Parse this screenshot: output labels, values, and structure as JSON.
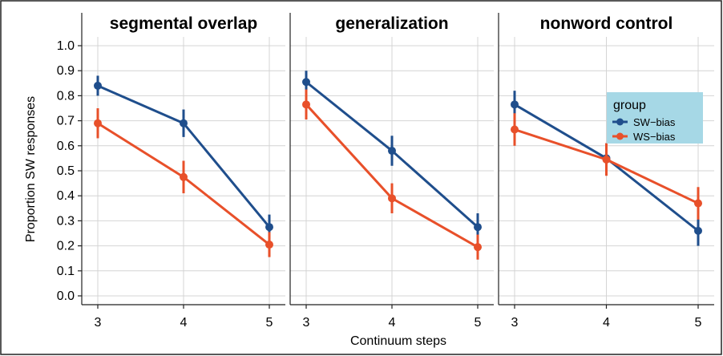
{
  "chart_data": {
    "type": "line",
    "ylabel": "Proportion SW responses",
    "xlabel": "Continuum steps",
    "ylim": [
      0.0,
      1.0
    ],
    "yticks": [
      "0.0",
      "0.1",
      "0.2",
      "0.3",
      "0.4",
      "0.5",
      "0.6",
      "0.7",
      "0.8",
      "0.9",
      "1.0"
    ],
    "x": [
      3,
      4,
      5
    ],
    "xticks": [
      "3",
      "4",
      "5"
    ],
    "grid": true,
    "legend": {
      "title": "group",
      "placement": "inside-top-right of last panel",
      "background": "#a6d8e6",
      "entries": [
        "SW−bias",
        "WS−bias"
      ]
    },
    "colors": {
      "SW-bias": "#1f4e8c",
      "WS-bias": "#e8502a"
    },
    "panels": [
      {
        "title": "segmental overlap",
        "series": [
          {
            "name": "SW−bias",
            "values": [
              0.84,
              0.69,
              0.275
            ],
            "err": [
              0.04,
              0.055,
              0.05
            ]
          },
          {
            "name": "WS−bias",
            "values": [
              0.69,
              0.475,
              0.205
            ],
            "err": [
              0.06,
              0.065,
              0.05
            ]
          }
        ]
      },
      {
        "title": "generalization",
        "series": [
          {
            "name": "SW−bias",
            "values": [
              0.855,
              0.58,
              0.275
            ],
            "err": [
              0.045,
              0.06,
              0.055
            ]
          },
          {
            "name": "WS−bias",
            "values": [
              0.765,
              0.39,
              0.195
            ],
            "err": [
              0.06,
              0.06,
              0.05
            ]
          }
        ]
      },
      {
        "title": "nonword control",
        "series": [
          {
            "name": "SW−bias",
            "values": [
              0.765,
              0.55,
              0.26
            ],
            "err": [
              0.055,
              0.06,
              0.06
            ]
          },
          {
            "name": "WS−bias",
            "values": [
              0.665,
              0.545,
              0.37
            ],
            "err": [
              0.065,
              0.065,
              0.065
            ]
          }
        ]
      }
    ]
  }
}
